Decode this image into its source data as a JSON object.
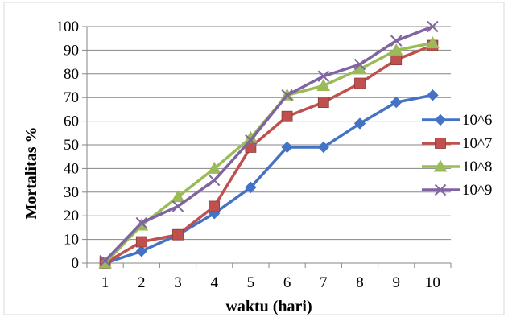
{
  "chart_data": {
    "type": "line",
    "title": "",
    "xlabel": "waktu (hari)",
    "ylabel": "Mortalitas %",
    "x": [
      1,
      2,
      3,
      4,
      5,
      6,
      7,
      8,
      9,
      10
    ],
    "ylim": [
      0,
      100
    ],
    "yticks": [
      0,
      10,
      20,
      30,
      40,
      50,
      60,
      70,
      80,
      90,
      100
    ],
    "grid": true,
    "legend_position": "right",
    "series": [
      {
        "name": "10^6",
        "color": "#4472C4",
        "marker": "diamond",
        "values": [
          0,
          5,
          12,
          21,
          32,
          49,
          49,
          59,
          68,
          71
        ]
      },
      {
        "name": "10^7",
        "color": "#C0504D",
        "marker": "square",
        "values": [
          0,
          9,
          12,
          24,
          49,
          62,
          68,
          76,
          86,
          92
        ]
      },
      {
        "name": "10^8",
        "color": "#9BBB59",
        "marker": "triangle",
        "values": [
          0,
          16,
          28,
          40,
          53,
          71,
          75,
          82,
          90,
          93
        ]
      },
      {
        "name": "10^9",
        "color": "#8064A2",
        "marker": "x",
        "values": [
          1,
          17,
          24,
          35,
          52,
          71,
          79,
          84,
          94,
          100
        ]
      }
    ]
  }
}
